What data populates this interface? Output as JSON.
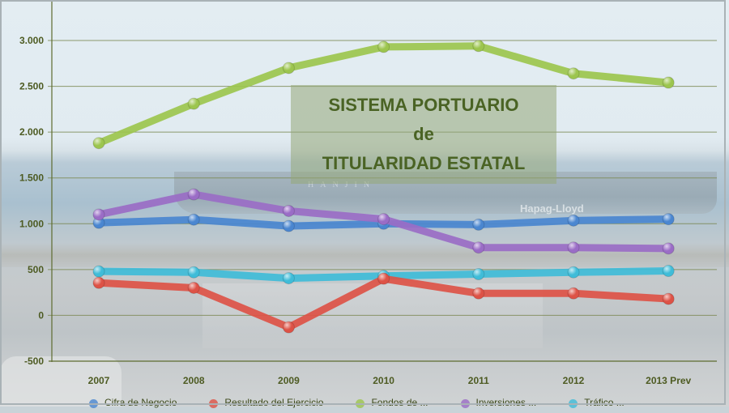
{
  "chart_data": {
    "type": "line",
    "title": "SISTEMA PORTUARIO de TITULARIDAD ESTATAL",
    "title_lines": [
      "SISTEMA PORTUARIO",
      "de",
      "TITULARIDAD ESTATAL"
    ],
    "xlabel": "",
    "ylabel": "",
    "categories": [
      "2007",
      "2008",
      "2009",
      "2010",
      "2011",
      "2012",
      "2013 Prev"
    ],
    "ylim": [
      -500,
      3000
    ],
    "yticks": [
      "-500",
      "0",
      "500",
      "1.000",
      "1.500",
      "2.000",
      "2.500",
      "3.000"
    ],
    "ytick_values": [
      -500,
      0,
      500,
      1000,
      1500,
      2000,
      2500,
      3000
    ],
    "grid": true,
    "legend_position": "bottom",
    "series": [
      {
        "name": "Cifra de Negocio",
        "color": "#4a86d0",
        "values": [
          1010,
          1045,
          975,
          1000,
          990,
          1035,
          1050
        ]
      },
      {
        "name": "Resultado del Ejercicio",
        "color": "#dd5246",
        "values": [
          355,
          300,
          -130,
          400,
          240,
          240,
          180
        ]
      },
      {
        "name": "Fondos de ...",
        "color": "#9cc54e",
        "values": [
          1880,
          2310,
          2700,
          2930,
          2940,
          2640,
          2540
        ]
      },
      {
        "name": "Inversiones ...",
        "color": "#9a6cc6",
        "values": [
          1100,
          1320,
          1140,
          1050,
          740,
          740,
          730
        ]
      },
      {
        "name": "Tráfico ...",
        "color": "#3fbcd8",
        "values": [
          480,
          470,
          405,
          430,
          450,
          470,
          485
        ]
      }
    ]
  },
  "background": {
    "ship_label": "Hapag-Lloyd",
    "ship_label_2": "HANJIN"
  }
}
